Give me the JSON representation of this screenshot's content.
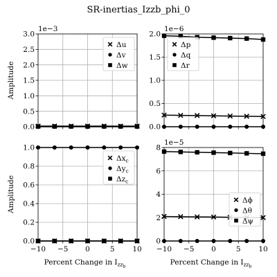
{
  "figure_title": "SR-inertias_Izzb_phi_0",
  "chart_data": [
    {
      "type": "line",
      "panel": "top-left",
      "exponent_label": "1e−3",
      "ylabel": "Amplitude",
      "xlabel": "",
      "xlim": [
        -10,
        10
      ],
      "ylim": [
        0,
        3.0
      ],
      "xticks": [
        -10,
        -5,
        0,
        5,
        10
      ],
      "xtick_labels": [
        "",
        "",
        "",
        "",
        ""
      ],
      "yticks": [
        0,
        0.5,
        1.0,
        1.5,
        2.0,
        2.5,
        3.0
      ],
      "ytick_labels": [
        "0.0",
        "0.5",
        "1.0",
        "1.5",
        "2.0",
        "2.5",
        "3.0"
      ],
      "grid": true,
      "legend_placement": "top-right",
      "x": [
        -10,
        -6.67,
        -3.33,
        0,
        3.33,
        6.67,
        10
      ],
      "series": [
        {
          "name": "Δu",
          "marker": "x",
          "values": [
            0.02,
            0.02,
            0.02,
            0.02,
            0.02,
            0.02,
            0.02
          ]
        },
        {
          "name": "Δv",
          "marker": "circle",
          "values": [
            0.0,
            0.0,
            0.0,
            0.0,
            0.0,
            0.0,
            0.0
          ]
        },
        {
          "name": "Δw",
          "marker": "square",
          "values": [
            0.01,
            0.01,
            0.01,
            0.01,
            0.01,
            0.01,
            0.01
          ]
        }
      ]
    },
    {
      "type": "line",
      "panel": "top-right",
      "exponent_label": "1e−6",
      "ylabel": "",
      "xlabel": "",
      "xlim": [
        -10,
        10
      ],
      "ylim": [
        0,
        2.0
      ],
      "xticks": [
        -10,
        -5,
        0,
        5,
        10
      ],
      "xtick_labels": [
        "",
        "",
        "",
        "",
        ""
      ],
      "yticks": [
        0,
        0.5,
        1.0,
        1.5,
        2.0
      ],
      "ytick_labels": [
        "0.0",
        "0.5",
        "1.0",
        "1.5",
        "2.0"
      ],
      "grid": true,
      "legend_placement": "top-left",
      "x": [
        -10,
        -6.67,
        -3.33,
        0,
        3.33,
        6.67,
        10
      ],
      "series": [
        {
          "name": "Δp",
          "marker": "x",
          "values": [
            0.25,
            0.245,
            0.24,
            0.235,
            0.23,
            0.225,
            0.22
          ]
        },
        {
          "name": "Δq",
          "marker": "circle",
          "values": [
            0.0,
            0.0,
            0.0,
            0.0,
            0.0,
            0.0,
            0.0
          ]
        },
        {
          "name": "Δr",
          "marker": "square",
          "values": [
            1.96,
            1.95,
            1.93,
            1.92,
            1.91,
            1.9,
            1.88
          ]
        }
      ]
    },
    {
      "type": "line",
      "panel": "bottom-left",
      "exponent_label": "",
      "ylabel": "Amplitude",
      "xlabel": "Percent Change in I",
      "xlabel_sub": "zz",
      "xlabel_subsub": "b",
      "xlim": [
        -10,
        10
      ],
      "ylim": [
        0,
        1.0
      ],
      "xticks": [
        -10,
        -5,
        0,
        5,
        10
      ],
      "xtick_labels": [
        "−10",
        "−5",
        "0",
        "5",
        "10"
      ],
      "yticks": [
        0,
        0.2,
        0.4,
        0.6,
        0.8,
        1.0
      ],
      "ytick_labels": [
        "0.0",
        "0.2",
        "0.4",
        "0.6",
        "0.8",
        "1.0"
      ],
      "grid": true,
      "legend_placement": "top-right",
      "x": [
        -10,
        -6.67,
        -3.33,
        0,
        3.33,
        6.67,
        10
      ],
      "series": [
        {
          "name": "Δx_c",
          "label_main": "Δx",
          "label_sub": "c",
          "marker": "x",
          "values": [
            0.0,
            0.0,
            0.0,
            0.0,
            0.0,
            0.0,
            0.0
          ]
        },
        {
          "name": "Δy_c",
          "label_main": "Δy",
          "label_sub": "c",
          "marker": "circle",
          "values": [
            1.0,
            1.0,
            1.0,
            1.0,
            1.0,
            1.0,
            1.0
          ]
        },
        {
          "name": "Δz_c",
          "label_main": "Δz",
          "label_sub": "c",
          "marker": "square",
          "values": [
            0.0,
            0.0,
            0.0,
            0.0,
            0.0,
            0.0,
            0.0
          ]
        }
      ]
    },
    {
      "type": "line",
      "panel": "bottom-right",
      "exponent_label": "1e−5",
      "ylabel": "",
      "xlabel": "Percent Change in I",
      "xlabel_sub": "zz",
      "xlabel_subsub": "b",
      "xlim": [
        -10,
        10
      ],
      "ylim": [
        0,
        8
      ],
      "xticks": [
        -10,
        -5,
        0,
        5,
        10
      ],
      "xtick_labels": [
        "−10",
        "−5",
        "0",
        "5",
        "10"
      ],
      "yticks": [
        0,
        2,
        4,
        6,
        8
      ],
      "ytick_labels": [
        "0",
        "2",
        "4",
        "6",
        "8"
      ],
      "grid": true,
      "legend_placement": "center-right",
      "x": [
        -10,
        -6.67,
        -3.33,
        0,
        3.33,
        6.67,
        10
      ],
      "series": [
        {
          "name": "Δϕ",
          "marker": "x",
          "values": [
            2.1,
            2.08,
            2.06,
            2.05,
            2.03,
            2.01,
            2.0
          ]
        },
        {
          "name": "Δθ",
          "marker": "circle",
          "values": [
            0.0,
            0.0,
            0.0,
            0.0,
            0.0,
            0.0,
            0.0
          ]
        },
        {
          "name": "Δψ",
          "marker": "square",
          "values": [
            7.65,
            7.62,
            7.59,
            7.56,
            7.53,
            7.5,
            7.47
          ]
        }
      ]
    }
  ]
}
